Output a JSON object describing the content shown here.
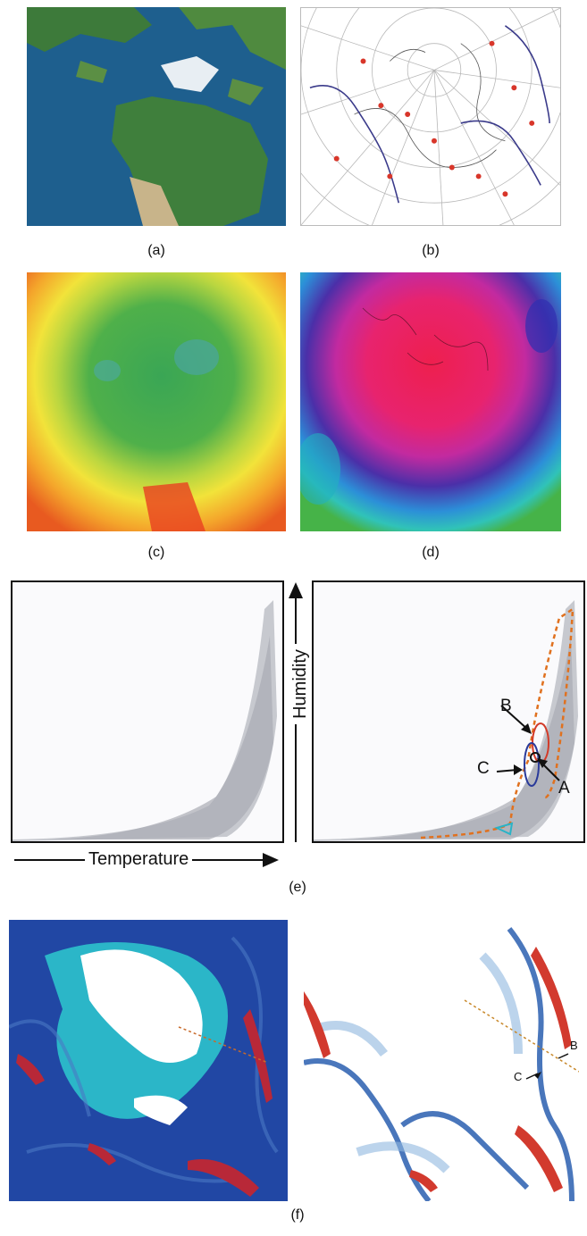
{
  "captions": {
    "a": "(a)",
    "b": "(b)",
    "c": "(c)",
    "d": "(d)",
    "e": "(e)",
    "f": "(f)"
  },
  "axes": {
    "x_label": "Temperature",
    "y_label": "Humidity"
  },
  "markers_e": {
    "A": "A",
    "B": "B",
    "C": "C"
  },
  "markers_f": {
    "B": "B",
    "C": "C"
  }
}
